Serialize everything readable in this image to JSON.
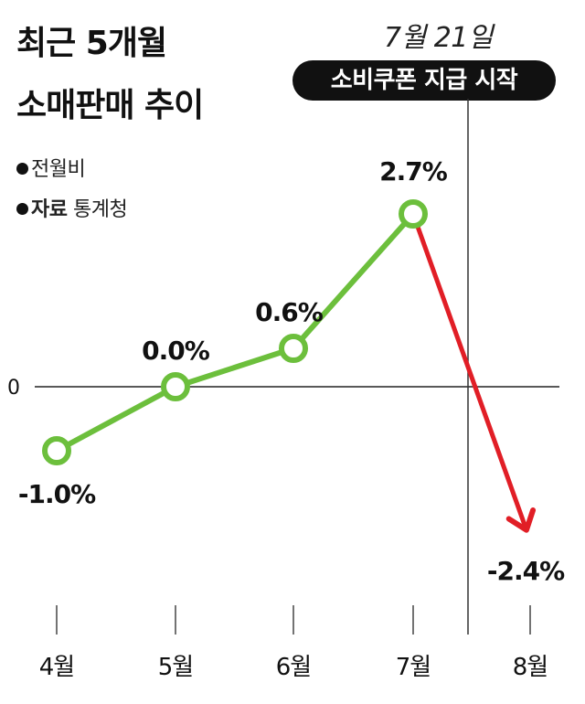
{
  "title": {
    "line1": "최근 5개월",
    "line2": "소매판매 추이"
  },
  "notes": {
    "basis": "전월비",
    "source_prefix": "자료",
    "source": "통계청"
  },
  "event": {
    "date": "7월 21일",
    "label": "소비쿠폰 지급 시작"
  },
  "colors": {
    "line": "#6cbf3c",
    "drop": "#e11e26",
    "text": "#111111",
    "badge_bg": "#111111"
  },
  "chart_data": {
    "type": "line",
    "categories": [
      "4월",
      "5월",
      "6월",
      "7월",
      "8월"
    ],
    "values": [
      -1.0,
      0.0,
      0.6,
      2.7,
      -2.4
    ],
    "data_labels": [
      "-1.0%",
      "0.0%",
      "0.6%",
      "2.7%",
      "-2.4%"
    ],
    "y_tick_labels": [
      "0"
    ],
    "ylim": [
      -3.1,
      4.0
    ],
    "event_between": [
      "7월",
      "8월"
    ],
    "declining_segment": [
      "7월",
      "8월"
    ],
    "grid": false
  }
}
